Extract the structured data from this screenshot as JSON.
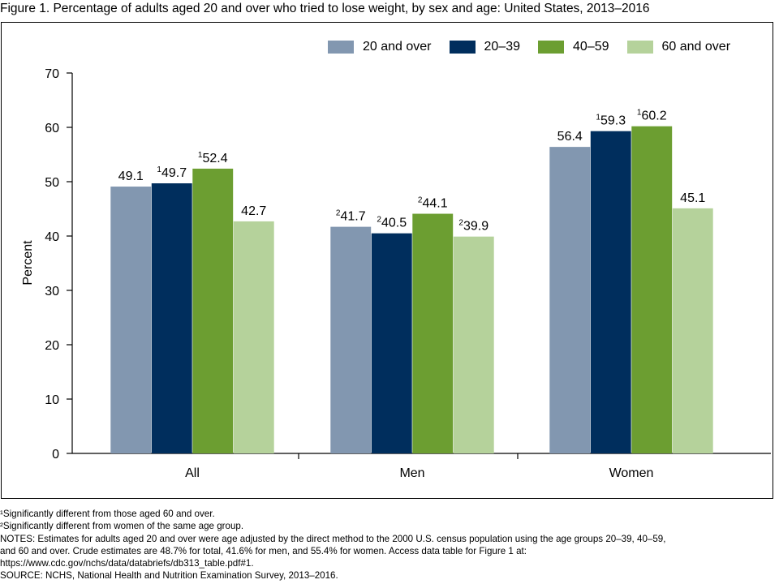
{
  "figure_title": "Figure 1. Percentage of adults aged 20 and over who tried to lose weight, by sex and age: United States, 2013–2016",
  "colors": {
    "20 and over": "#8297b0",
    "20–39": "#002e5d",
    "40–59": "#6c9e31",
    "60 and over": "#b5d29b"
  },
  "chart_data": {
    "type": "bar",
    "title": "Figure 1. Percentage of adults aged 20 and over who tried to lose weight, by sex and age: United States, 2013–2016",
    "xlabel": "",
    "ylabel": "Percent",
    "ylim": [
      0,
      70
    ],
    "yticks": [
      "0",
      "10",
      "20",
      "30",
      "40",
      "50",
      "60",
      "70"
    ],
    "grid": false,
    "legend_position": "top-right",
    "categories": [
      "All",
      "Men",
      "Women"
    ],
    "series": [
      {
        "name": "20 and over",
        "values": [
          49.1,
          41.7,
          56.4
        ],
        "labels": [
          "49.1",
          "41.7",
          "56.4"
        ],
        "marks": [
          "",
          "2",
          ""
        ]
      },
      {
        "name": "20–39",
        "values": [
          49.7,
          40.5,
          59.3
        ],
        "labels": [
          "49.7",
          "40.5",
          "59.3"
        ],
        "marks": [
          "1",
          "2",
          "1"
        ]
      },
      {
        "name": "40–59",
        "values": [
          52.4,
          44.1,
          60.2
        ],
        "labels": [
          "52.4",
          "44.1",
          "60.2"
        ],
        "marks": [
          "1",
          "2",
          "1"
        ]
      },
      {
        "name": "60 and over",
        "values": [
          42.7,
          39.9,
          45.1
        ],
        "labels": [
          "42.7",
          "39.9",
          "45.1"
        ],
        "marks": [
          "",
          "2",
          ""
        ]
      }
    ]
  },
  "footnotes": {
    "note1": "¹Significantly different from those aged 60 and over.",
    "note2": "²Significantly different from women of the same age group.",
    "notes_line1": "NOTES: Estimates for adults aged 20 and over were age adjusted by the direct method to the 2000 U.S. census population using the age groups 20–39, 40–59,",
    "notes_line2": "and 60 and over. Crude estimates are 48.7% for total, 41.6% for men, and 55.4% for women. Access data table for Figure 1 at:",
    "notes_line3": "https://www.cdc.gov/nchs/data/databriefs/db313_table.pdf#1.",
    "source": "SOURCE: NCHS, National Health and Nutrition Examination Survey, 2013–2016."
  }
}
